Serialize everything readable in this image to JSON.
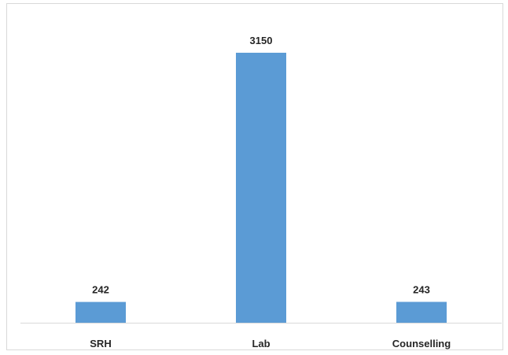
{
  "chart_data": {
    "type": "bar",
    "categories": [
      "SRH",
      "Lab",
      "Counselling"
    ],
    "values": [
      242,
      3150,
      243
    ],
    "data_labels": [
      "242",
      "3150",
      "243"
    ],
    "title": "",
    "xlabel": "",
    "ylabel": "",
    "ylim": [
      0,
      3150
    ],
    "grid": false,
    "legend": "none",
    "bar_color": "#5b9bd5",
    "axis_color": "#d9d9d9",
    "label_color": "#262626"
  }
}
